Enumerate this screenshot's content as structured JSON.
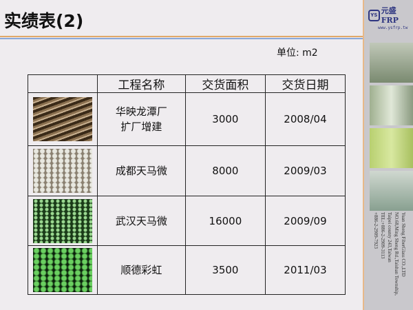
{
  "title": "实绩表(2)",
  "unit": "单位: m2",
  "table": {
    "headers": [
      "",
      "工程名称",
      "交货面积",
      "交货日期"
    ],
    "rows": [
      {
        "name_l1": "华映龙潭厂",
        "name_l2": "扩厂增建",
        "area": "3000",
        "date": "2008/04"
      },
      {
        "name_l1": "成都天马微",
        "name_l2": "",
        "area": "8000",
        "date": "2009/03"
      },
      {
        "name_l1": "武汉天马微",
        "name_l2": "",
        "area": "16000",
        "date": "2009/09"
      },
      {
        "name_l1": "顺德彩虹",
        "name_l2": "",
        "area": "3500",
        "date": "2011/03"
      }
    ]
  },
  "sidebar": {
    "logo_mark": "YS",
    "brand": "元盛FRP",
    "url": "www.ysfrp.tw",
    "address": [
      "Yuan Sheng FiberGlass CO.,LTD",
      "NO.68,Ming Sheng Rd.,Taishan Township,",
      "Taipei county 243,Taiwan",
      "TEL:+886-2-2909-3113",
      "+886-2-2909-7923"
    ]
  },
  "colors": {
    "accent_orange": "#e0a868",
    "accent_blue": "#8aa8d8",
    "brand": "#2d3580"
  }
}
